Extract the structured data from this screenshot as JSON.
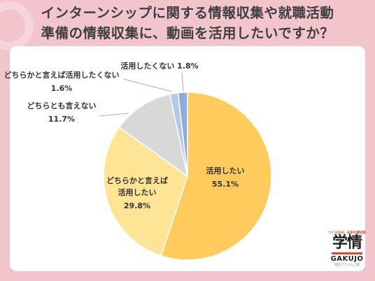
{
  "title": {
    "line1": "インターンシップに関する情報収集や就職活動",
    "line2": "準備の情報収集に、動画を活用したいですか？"
  },
  "chart_data": {
    "type": "pie",
    "title": "インターンシップに関する情報収集や就職活動準備の情報収集に、動画を活用したいですか？",
    "start": "12 o'clock, clockwise",
    "slices": [
      {
        "label": "活用したい",
        "value": 55.1,
        "value_label": "55.1%",
        "color": "#fecb5c"
      },
      {
        "label": "どちらかと言えば活用したい",
        "label_lines": [
          "どちらかと言えば",
          "活用したい"
        ],
        "value": 29.8,
        "value_label": "29.8%",
        "color": "#fee495"
      },
      {
        "label": "どちらとも言えない",
        "value": 11.7,
        "value_label": "11.7%",
        "color": "#d8d8d8"
      },
      {
        "label": "どちらかと言えば活用したくない",
        "value": 1.6,
        "value_label": "1.6%",
        "color": "#b4c9ea"
      },
      {
        "label": "活用したくない",
        "value": 1.8,
        "value_label": "1.8%",
        "color": "#8faadc"
      }
    ]
  },
  "logo": {
    "tagline": "つくるのは、未来の選択肢",
    "mark": "学情",
    "brand": "GAKUJO",
    "sub": "東証プライム上場"
  }
}
